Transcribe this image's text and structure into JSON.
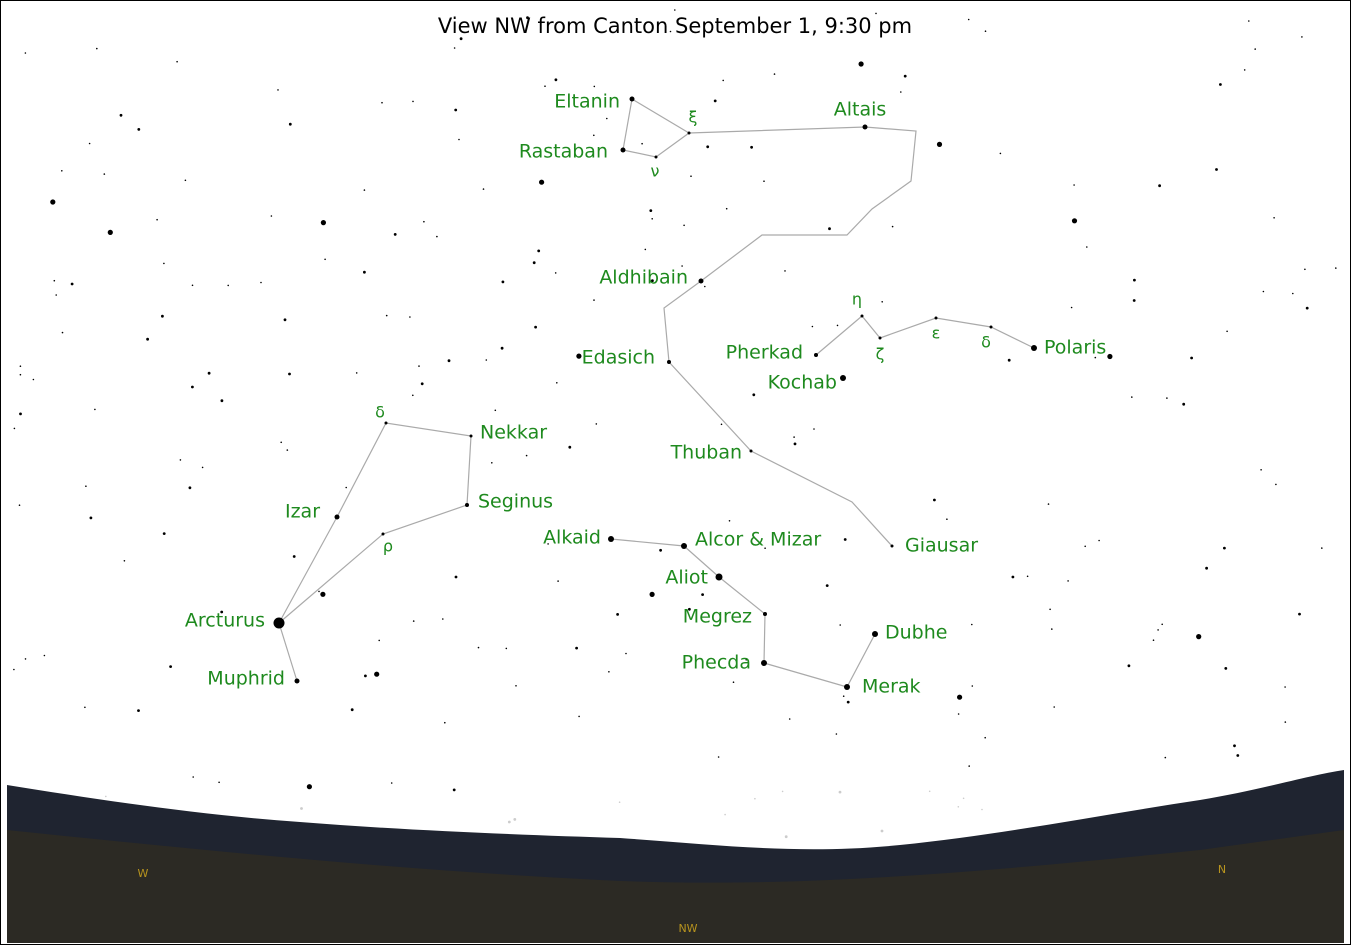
{
  "title": "View NW from Canton September 1, 9:30 pm",
  "stars": [
    "Eltanin",
    "Rastaban",
    "Altais",
    "Aldhibain",
    "Edasich",
    "Thuban",
    "Giausar",
    "Polaris",
    "Pherkad",
    "Kochab",
    "Nekkar",
    "Seginus",
    "Izar",
    "Arcturus",
    "Muphrid",
    "Alkaid",
    "Alcor & Mizar",
    "Aliot",
    "Megrez",
    "Phecda",
    "Dubhe",
    "Merak"
  ],
  "greek": [
    "ξ",
    "ν",
    "η",
    "ε",
    "δ",
    "ζ",
    "δ",
    "ρ"
  ],
  "directions": [
    "W",
    "NW",
    "N"
  ]
}
